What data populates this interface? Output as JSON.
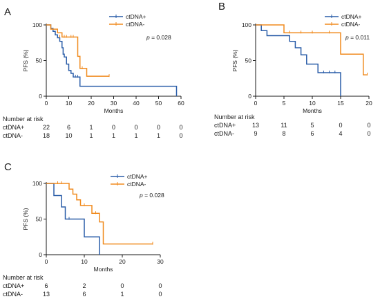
{
  "colors": {
    "ctdna_pos": "#2a5da8",
    "ctdna_neg": "#f08a1d",
    "axis": "#1a1a1a"
  },
  "chart_data": [
    {
      "type": "line",
      "panel": "A",
      "xlabel": "Months",
      "ylabel": "PFS (%)",
      "xlim": [
        0,
        60
      ],
      "ylim": [
        0,
        100
      ],
      "xticks": [
        0,
        10,
        20,
        30,
        40,
        50,
        60
      ],
      "xtick_labels": [
        "0",
        "10",
        "20",
        "30",
        "40",
        "50",
        "60"
      ],
      "yticks": [
        0,
        50,
        100
      ],
      "ytick_labels": [
        "0",
        "50",
        "100"
      ],
      "legend": [
        "ctDNA+",
        "ctDNA-"
      ],
      "legend_position": "top-right",
      "pvalue": {
        "prefix": "p",
        "text": " = 0.028"
      },
      "series": [
        {
          "name": "ctDNA+",
          "steps": [
            [
              0,
              100
            ],
            [
              2,
              95
            ],
            [
              3,
              91
            ],
            [
              4,
              86
            ],
            [
              5,
              82
            ],
            [
              6,
              77
            ],
            [
              7,
              68
            ],
            [
              7.5,
              59
            ],
            [
              8,
              55
            ],
            [
              9,
              45
            ],
            [
              10,
              36
            ],
            [
              11,
              32
            ],
            [
              12,
              27
            ],
            [
              15,
              14
            ],
            [
              58,
              0
            ]
          ],
          "end_x": 58,
          "censors": [
            [
              13,
              27
            ],
            [
              14,
              27
            ]
          ]
        },
        {
          "name": "ctDNA-",
          "steps": [
            [
              0,
              100
            ],
            [
              2,
              94
            ],
            [
              5,
              89
            ],
            [
              7,
              83
            ],
            [
              14,
              56
            ],
            [
              15,
              39
            ],
            [
              18,
              28
            ]
          ],
          "end_x": 28,
          "censors": [
            [
              6,
              83
            ],
            [
              8,
              83
            ],
            [
              9,
              83
            ],
            [
              11,
              83
            ],
            [
              12,
              83
            ],
            [
              16,
              39
            ],
            [
              28,
              28
            ]
          ]
        }
      ],
      "risk_table": {
        "header": "Number at risk",
        "times": [
          0,
          10,
          20,
          30,
          40,
          50,
          60
        ],
        "rows": [
          {
            "label": "ctDNA+",
            "values": [
              "22",
              "6",
              "1",
              "0",
              "0",
              "0",
              "0"
            ]
          },
          {
            "label": "ctDNA-",
            "values": [
              "18",
              "10",
              "1",
              "1",
              "1",
              "1",
              "0"
            ]
          }
        ]
      }
    },
    {
      "type": "line",
      "panel": "B",
      "xlabel": "Months",
      "ylabel": "PFS (%)",
      "xlim": [
        0,
        20
      ],
      "ylim": [
        0,
        100
      ],
      "xticks": [
        0,
        5,
        10,
        15,
        20
      ],
      "xtick_labels": [
        "0",
        "5",
        "10",
        "15",
        "20"
      ],
      "yticks": [
        0,
        50,
        100
      ],
      "ytick_labels": [
        "0",
        "50",
        "100"
      ],
      "legend": [
        "ctDNA+",
        "ctDNA-"
      ],
      "legend_position": "top-right",
      "pvalue": {
        "prefix": "p",
        "text": " = 0.011"
      },
      "series": [
        {
          "name": "ctDNA+",
          "steps": [
            [
              0,
              100
            ],
            [
              1,
              92
            ],
            [
              2,
              85
            ],
            [
              6,
              77
            ],
            [
              7,
              68
            ],
            [
              8,
              58
            ],
            [
              9,
              45
            ],
            [
              11,
              33
            ],
            [
              15,
              0
            ]
          ],
          "end_x": 15,
          "censors": [
            [
              12,
              33
            ],
            [
              13,
              33
            ],
            [
              14,
              33
            ]
          ]
        },
        {
          "name": "ctDNA-",
          "steps": [
            [
              0,
              100
            ],
            [
              5,
              89
            ],
            [
              15,
              59
            ],
            [
              19,
              30
            ]
          ],
          "end_x": 19.7,
          "censors": [
            [
              6,
              89
            ],
            [
              8,
              89
            ],
            [
              10,
              89
            ],
            [
              13,
              89
            ],
            [
              19.7,
              30
            ]
          ]
        }
      ],
      "risk_table": {
        "header": "Number at risk",
        "times": [
          0,
          5,
          10,
          15,
          20
        ],
        "rows": [
          {
            "label": "ctDNA+",
            "values": [
              "13",
              "11",
              "5",
              "0",
              "0"
            ]
          },
          {
            "label": "ctDNA-",
            "values": [
              "9",
              "8",
              "6",
              "4",
              "0"
            ]
          }
        ]
      }
    },
    {
      "type": "line",
      "panel": "C",
      "xlabel": "Months",
      "ylabel": "PFS (%)",
      "xlim": [
        0,
        30
      ],
      "ylim": [
        0,
        100
      ],
      "xticks": [
        0,
        10,
        20,
        30
      ],
      "xtick_labels": [
        "0",
        "10",
        "20",
        "30"
      ],
      "yticks": [
        0,
        50,
        100
      ],
      "ytick_labels": [
        "0",
        "50",
        "100"
      ],
      "legend": [
        "ctDNA+",
        "ctDNA-"
      ],
      "legend_position": "top-right",
      "pvalue": {
        "prefix": "p",
        "text": " = 0.028"
      },
      "series": [
        {
          "name": "ctDNA+",
          "steps": [
            [
              0,
              100
            ],
            [
              2,
              83
            ],
            [
              4,
              67
            ],
            [
              5,
              50
            ],
            [
              10,
              25
            ],
            [
              14,
              0
            ]
          ],
          "end_x": 14,
          "censors": [
            [
              6,
              50
            ]
          ]
        },
        {
          "name": "ctDNA-",
          "steps": [
            [
              0,
              100
            ],
            [
              6,
              92
            ],
            [
              7,
              85
            ],
            [
              8,
              77
            ],
            [
              9,
              69
            ],
            [
              12,
              58
            ],
            [
              14,
              46
            ],
            [
              15,
              15
            ]
          ],
          "end_x": 28,
          "censors": [
            [
              3,
              100
            ],
            [
              4,
              100
            ],
            [
              10,
              69
            ],
            [
              13,
              58
            ],
            [
              28,
              15
            ]
          ]
        }
      ],
      "risk_table": {
        "header": "Number at risk",
        "times": [
          0,
          10,
          20,
          30
        ],
        "rows": [
          {
            "label": "ctDNA+",
            "values": [
              "6",
              "2",
              "0",
              "0"
            ]
          },
          {
            "label": "ctDNA-",
            "values": [
              "13",
              "6",
              "1",
              "0"
            ]
          }
        ]
      }
    }
  ]
}
